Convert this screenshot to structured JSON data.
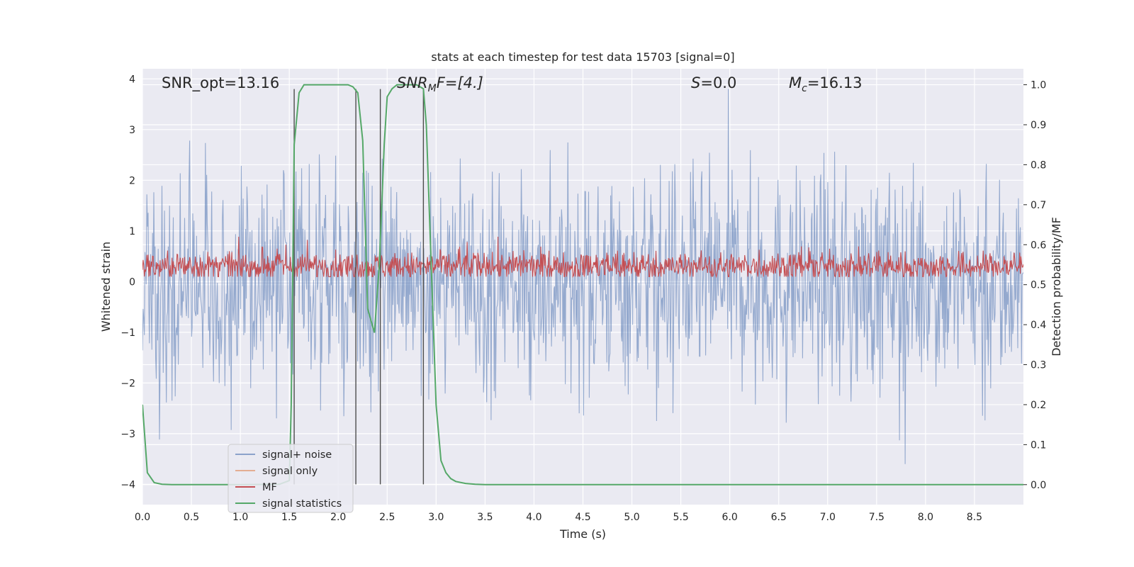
{
  "chart_data": {
    "type": "line",
    "title": "stats at each timestep for test data 15703 [signal=0]",
    "xlabel": "Time (s)",
    "ylabel_left": "Whitened strain",
    "ylabel_right": "Detection probability/MF",
    "xlim": [
      0,
      9
    ],
    "ylim_left": [
      -4.4,
      4.2
    ],
    "ylim_right": [
      -0.05,
      1.04
    ],
    "x_ticks": [
      "0.0",
      "0.5",
      "1.0",
      "1.5",
      "2.0",
      "2.5",
      "3.0",
      "3.5",
      "4.0",
      "4.5",
      "5.0",
      "5.5",
      "6.0",
      "6.5",
      "7.0",
      "7.5",
      "8.0",
      "8.5"
    ],
    "y_ticks_left": [
      "4",
      "3",
      "2",
      "1",
      "0",
      "−1",
      "−2",
      "−3",
      "−4"
    ],
    "y_ticks_right": [
      "1.0",
      "0.9",
      "0.8",
      "0.7",
      "0.6",
      "0.5",
      "0.4",
      "0.3",
      "0.2",
      "0.1",
      "0.0"
    ],
    "grid": true,
    "legend_position": "lower-left",
    "annotations": {
      "snr_opt": "SNR_opt=13.16",
      "snr_mf_base": "SNR",
      "snr_mf_sub": "M",
      "snr_mf_tail": "F=[4.]",
      "s_main": "S",
      "s_tail": "=0.0",
      "mc_main": "M",
      "mc_sub": "c",
      "mc_tail": "=16.13"
    },
    "series": [
      {
        "name": "signal+ noise",
        "color": "#4c72b0",
        "axis": "left",
        "kind": "noise",
        "amplitude_range": [
          -3.6,
          3.8
        ]
      },
      {
        "name": "signal only",
        "color": "#dd8452",
        "axis": "left",
        "kind": "flat",
        "values": []
      },
      {
        "name": "MF",
        "color": "#c44e52",
        "axis": "right",
        "kind": "noise",
        "range": [
          0.52,
          0.62
        ]
      },
      {
        "name": "signal statistics",
        "color": "#55a868",
        "axis": "right",
        "x": [
          0.0,
          0.05,
          0.12,
          0.2,
          0.3,
          0.5,
          1.0,
          1.4,
          1.5,
          1.52,
          1.55,
          1.6,
          1.65,
          1.7,
          2.0,
          2.1,
          2.15,
          2.2,
          2.25,
          2.3,
          2.37,
          2.42,
          2.47,
          2.5,
          2.55,
          2.6,
          2.8,
          2.87,
          2.9,
          2.95,
          3.0,
          3.05,
          3.1,
          3.15,
          3.2,
          3.3,
          3.4,
          3.5,
          4.0,
          9.0
        ],
        "y": [
          0.2,
          0.03,
          0.005,
          0.001,
          0.0,
          0.0,
          0.0,
          0.001,
          0.01,
          0.2,
          0.85,
          0.98,
          1.0,
          1.0,
          1.0,
          1.0,
          0.995,
          0.98,
          0.86,
          0.44,
          0.38,
          0.55,
          0.85,
          0.97,
          0.99,
          1.0,
          1.0,
          0.99,
          0.9,
          0.55,
          0.2,
          0.06,
          0.03,
          0.015,
          0.008,
          0.003,
          0.001,
          0.0,
          0.0,
          0.0
        ]
      }
    ],
    "vertical_lines": {
      "color": "#4d4d4d",
      "items": [
        {
          "x": 1.55,
          "y_top": 3.8,
          "y_bottom": -4.0
        },
        {
          "x": 2.18,
          "y_top": 3.8,
          "y_bottom": -4.0
        },
        {
          "x": 2.43,
          "y_top": 3.8,
          "y_bottom": -4.0
        },
        {
          "x": 2.87,
          "y_top": 3.8,
          "y_bottom": -4.0
        }
      ]
    },
    "colors": {
      "axes_bg": "#eaeaf2",
      "grid": "#ffffff",
      "text": "#262626"
    }
  }
}
